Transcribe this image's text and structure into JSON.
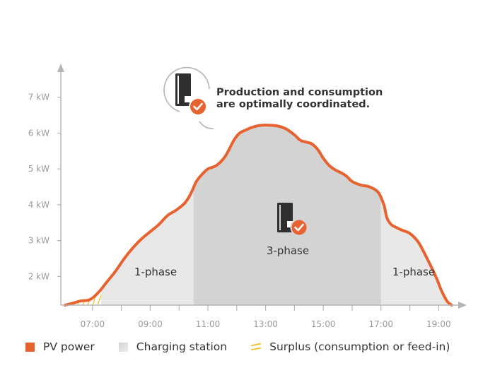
{
  "chart_data": {
    "type": "area",
    "annotation": [
      "Production and consumption",
      "are optimally coordinated."
    ],
    "y_ticks": [
      {
        "value": 2,
        "label": "2 kW"
      },
      {
        "value": 3,
        "label": "3 kW"
      },
      {
        "value": 4,
        "label": "4 kW"
      },
      {
        "value": 5,
        "label": "5 kW"
      },
      {
        "value": 6,
        "label": "6 kW"
      },
      {
        "value": 7,
        "label": "7 kW"
      }
    ],
    "x_ticks": [
      {
        "value": 7,
        "label": "07:00"
      },
      {
        "value": 9,
        "label": "09:00"
      },
      {
        "value": 11,
        "label": "11:00"
      },
      {
        "value": 13,
        "label": "13:00"
      },
      {
        "value": 15,
        "label": "15:00"
      },
      {
        "value": 17,
        "label": "17:00"
      },
      {
        "value": 19,
        "label": "19:00"
      }
    ],
    "x_minor_ticks": [
      8,
      10,
      12,
      14,
      16,
      18
    ],
    "xlim": [
      5.9,
      19.85
    ],
    "ylim": [
      1.2,
      7.9
    ],
    "pv_power": {
      "x": [
        6.05,
        6.3,
        6.6,
        6.9,
        7.2,
        7.5,
        7.8,
        8.1,
        8.4,
        8.7,
        9.0,
        9.3,
        9.6,
        9.9,
        10.2,
        10.4,
        10.6,
        10.8,
        11.0,
        11.3,
        11.6,
        11.9,
        12.1,
        12.3,
        12.5,
        12.7,
        12.9,
        13.1,
        13.4,
        13.7,
        14.0,
        14.2,
        14.4,
        14.6,
        14.8,
        15.0,
        15.2,
        15.4,
        15.6,
        15.8,
        16.0,
        16.3,
        16.6,
        16.9,
        17.1,
        17.2,
        17.35,
        17.5,
        17.7,
        18.0,
        18.3,
        18.6,
        18.9,
        19.1,
        19.3,
        19.45
      ],
      "y": [
        1.2,
        1.25,
        1.32,
        1.35,
        1.55,
        1.85,
        2.15,
        2.5,
        2.8,
        3.05,
        3.25,
        3.45,
        3.7,
        3.85,
        4.05,
        4.3,
        4.65,
        4.85,
        5.0,
        5.1,
        5.35,
        5.8,
        6.0,
        6.08,
        6.15,
        6.2,
        6.22,
        6.22,
        6.2,
        6.12,
        5.95,
        5.8,
        5.75,
        5.7,
        5.55,
        5.3,
        5.1,
        4.98,
        4.9,
        4.8,
        4.65,
        4.55,
        4.5,
        4.35,
        4.0,
        3.65,
        3.45,
        3.38,
        3.3,
        3.2,
        2.95,
        2.5,
        2.0,
        1.6,
        1.3,
        1.2
      ]
    },
    "charging_station_phases": [
      {
        "from": 7.3,
        "to": 10.5,
        "label": "1-phase"
      },
      {
        "from": 10.5,
        "to": 17.0,
        "label": "3-phase"
      },
      {
        "from": 17.0,
        "to": 19.3,
        "label": "1-phase"
      }
    ],
    "legend": {
      "pv": "PV power",
      "charging": "Charging station",
      "surplus": "Surplus (consumption or feed-in)"
    },
    "colors": {
      "pv_line": "#e8622f",
      "one_phase_fill": "#e8e8e8",
      "three_phase_fill": "#d3d3d3",
      "surplus_hatch": "#f2c12e",
      "axis": "#b5b5b5",
      "icon_dark": "#2f2f2f",
      "check_badge": "#e8622f"
    }
  }
}
